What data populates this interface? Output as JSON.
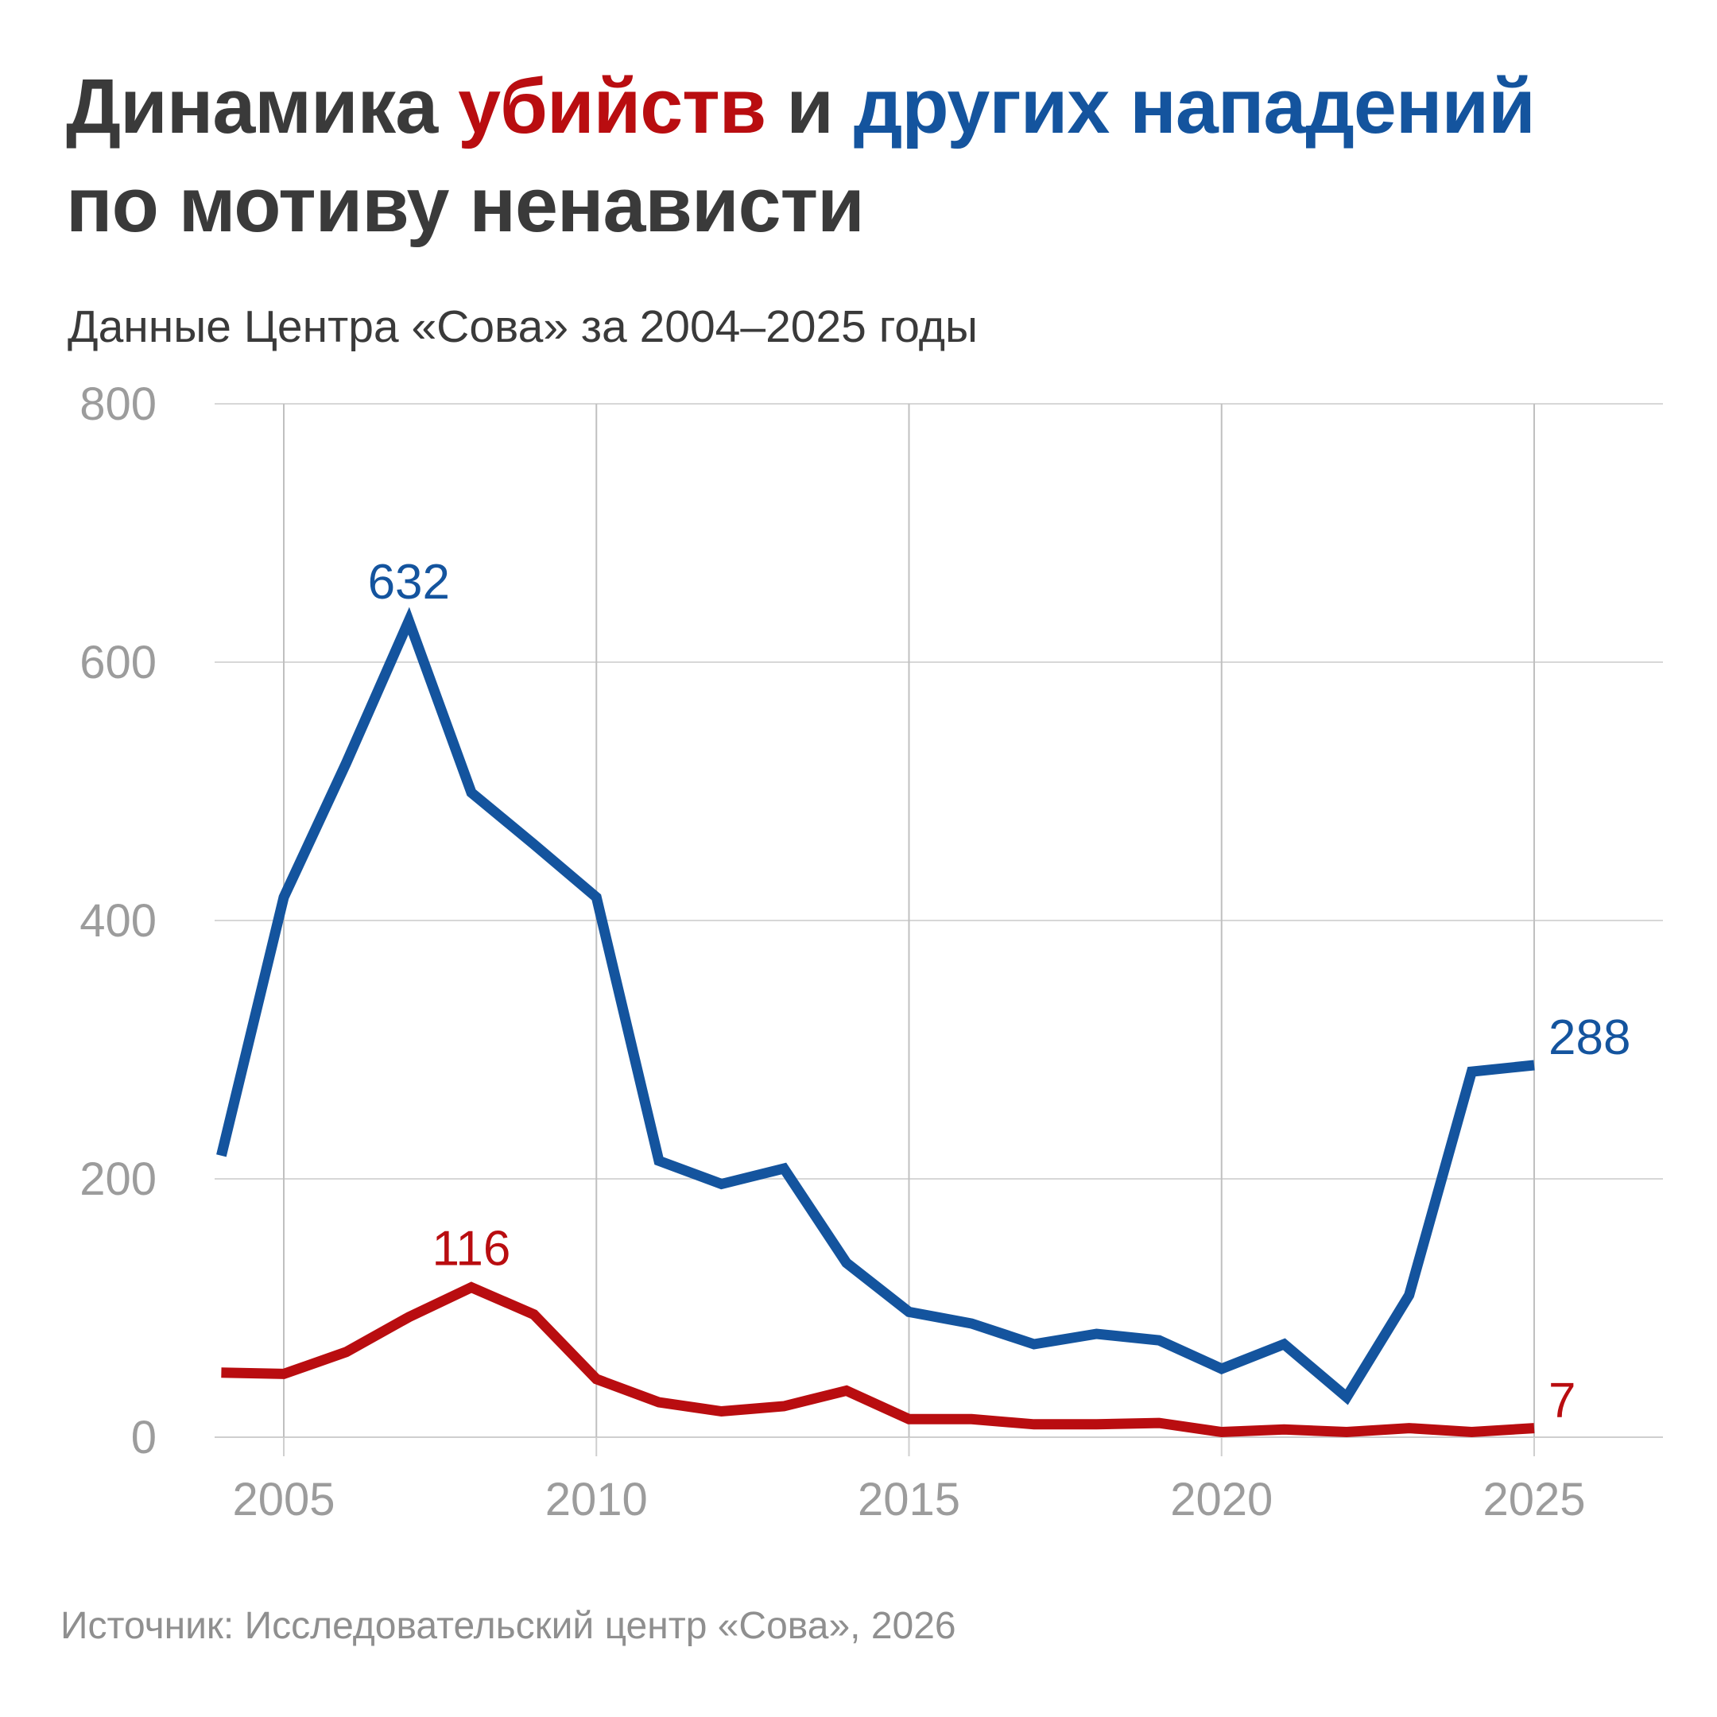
{
  "page": {
    "background": "#ffffff"
  },
  "title": {
    "part_1": "Динамика ",
    "part_2_red": "убийств",
    "part_3": " и ",
    "part_4_blue": "других нападений",
    "line_2": "по мотиву ненависти"
  },
  "subtitle": "Данные Центра «Сова» за 2004–2025 годы",
  "source": "Источник: Исследовательский центр «Сова», 2026",
  "colors": {
    "accent_red": "#b90d10",
    "accent_blue": "#14549e",
    "title_text": "#3a3a3a",
    "axis_text": "#9c9c9c",
    "source_text": "#8f8f8f",
    "grid_horizontal": "#d7d7d7",
    "grid_vertical": "#c0c0c0",
    "axis_line": "#cfcfcf"
  },
  "chart_data": {
    "type": "line",
    "title": "Динамика убийств и других нападений по мотиву ненависти",
    "subtitle": "Данные Центра «Сова» за 2004–2025 годы",
    "xlabel": "",
    "ylabel": "",
    "xlim": [
      2004,
      2025
    ],
    "ylim": [
      0,
      800
    ],
    "grid": true,
    "legend": "none",
    "x": [
      2004,
      2005,
      2006,
      2007,
      2008,
      2009,
      2010,
      2011,
      2012,
      2013,
      2014,
      2015,
      2016,
      2017,
      2018,
      2019,
      2020,
      2021,
      2022,
      2023,
      2024,
      2025
    ],
    "series": [
      {
        "name": "другие нападения",
        "color_key": "accent_blue",
        "values": [
          218,
          418,
          522,
          632,
          499,
          459,
          418,
          214,
          196,
          208,
          135,
          97,
          88,
          72,
          80,
          75,
          53,
          72,
          31,
          110,
          283,
          288
        ]
      },
      {
        "name": "убийства",
        "color_key": "accent_red",
        "values": [
          50,
          49,
          66,
          93,
          116,
          95,
          45,
          27,
          20,
          24,
          36,
          14,
          14,
          10,
          10,
          11,
          4,
          6,
          4,
          7,
          4,
          7
        ]
      }
    ],
    "annotations": [
      {
        "text": "632",
        "series": "другие нападения",
        "year": 2007,
        "value": 632,
        "placement": "above",
        "color_key": "accent_blue"
      },
      {
        "text": "116",
        "series": "убийства",
        "year": 2008,
        "value": 116,
        "placement": "above",
        "color_key": "accent_red"
      },
      {
        "text": "288",
        "series": "другие нападения",
        "year": 2025,
        "value": 288,
        "placement": "right",
        "color_key": "accent_blue"
      },
      {
        "text": "7",
        "series": "убийства",
        "year": 2025,
        "value": 7,
        "placement": "right",
        "color_key": "accent_red"
      }
    ],
    "yticks": [
      0,
      200,
      400,
      600,
      800
    ],
    "xticks": [
      2005,
      2010,
      2015,
      2020,
      2025
    ]
  }
}
